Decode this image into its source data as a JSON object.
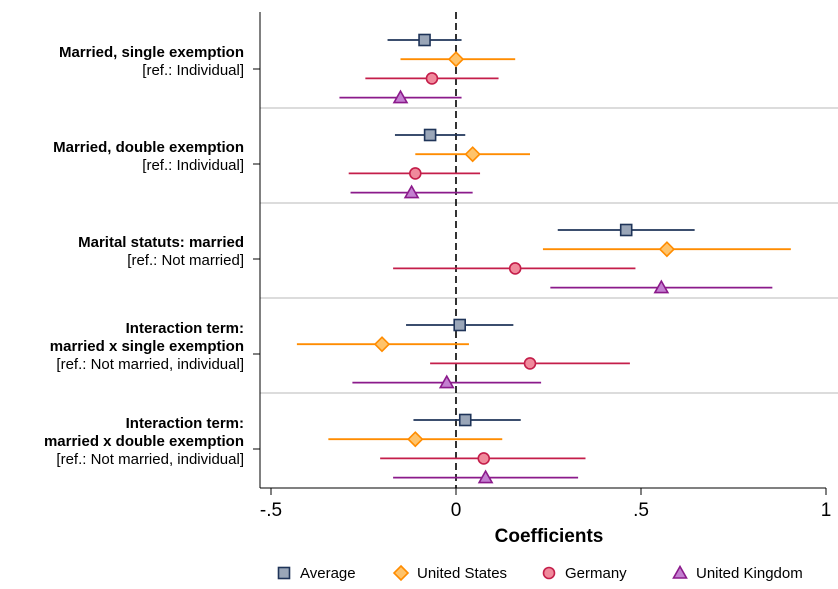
{
  "chart_data": {
    "type": "scatter",
    "subtype": "coefficient-plot",
    "xlabel": "Coefficients",
    "xlim": [
      -0.52,
      1.02
    ],
    "xticks": [
      -0.5,
      0,
      0.5,
      1
    ],
    "xtick_labels": [
      "-.5",
      "0",
      ".5",
      "1"
    ],
    "reference_line": {
      "x": 0,
      "style": "dashed"
    },
    "grid": "horizontal separators between groups",
    "legend_position": "bottom",
    "categories": [
      {
        "label_lines": [
          "Married, single exemption"
        ],
        "ref": "[ref.: Individual]"
      },
      {
        "label_lines": [
          "Married, double exemption"
        ],
        "ref": "[ref.: Individual]"
      },
      {
        "label_lines": [
          "Marital statuts: married"
        ],
        "ref": "[ref.: Not married]"
      },
      {
        "label_lines": [
          "Interaction term:",
          "married x single exemption"
        ],
        "ref": "[ref.: Not married, individual]"
      },
      {
        "label_lines": [
          "Interaction term:",
          "married x double exemption"
        ],
        "ref": "[ref.: Not married, individual]"
      }
    ],
    "series": [
      {
        "name": "Average",
        "marker": "square",
        "color": "#1f3459",
        "fill": "#9aa6b8",
        "estimates": [
          -0.085,
          -0.07,
          0.46,
          0.01,
          0.025
        ],
        "ci": [
          [
            -0.185,
            0.015
          ],
          [
            -0.165,
            0.025
          ],
          [
            0.275,
            0.645
          ],
          [
            -0.135,
            0.155
          ],
          [
            -0.115,
            0.175
          ]
        ]
      },
      {
        "name": "United States",
        "marker": "diamond",
        "color": "#ff8c00",
        "fill": "#ffc36a",
        "estimates": [
          0.0,
          0.045,
          0.57,
          -0.2,
          -0.11
        ],
        "ci": [
          [
            -0.15,
            0.16
          ],
          [
            -0.11,
            0.2
          ],
          [
            0.235,
            0.905
          ],
          [
            -0.43,
            0.035
          ],
          [
            -0.345,
            0.125
          ]
        ]
      },
      {
        "name": "Germany",
        "marker": "circle",
        "color": "#c41e4a",
        "fill": "#f08a9c",
        "estimates": [
          -0.065,
          -0.11,
          0.16,
          0.2,
          0.075
        ],
        "ci": [
          [
            -0.245,
            0.115
          ],
          [
            -0.29,
            0.065
          ],
          [
            -0.17,
            0.485
          ],
          [
            -0.07,
            0.47
          ],
          [
            -0.205,
            0.35
          ]
        ]
      },
      {
        "name": "United Kingdom",
        "marker": "triangle",
        "color": "#8b1a8b",
        "fill": "#c37fd0",
        "estimates": [
          -0.15,
          -0.12,
          0.555,
          -0.025,
          0.08
        ],
        "ci": [
          [
            -0.315,
            0.015
          ],
          [
            -0.285,
            0.045
          ],
          [
            0.255,
            0.855
          ],
          [
            -0.28,
            0.23
          ],
          [
            -0.17,
            0.33
          ]
        ]
      }
    ]
  }
}
